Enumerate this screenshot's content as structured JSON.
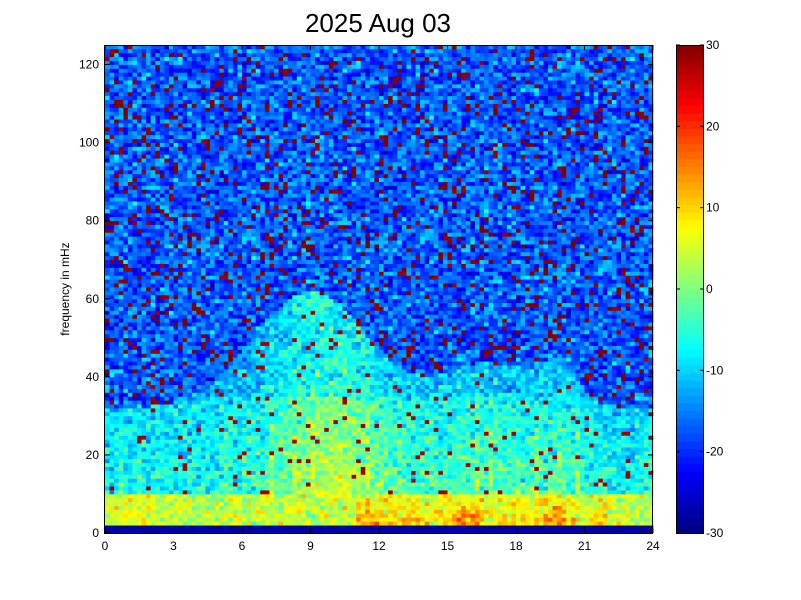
{
  "chart_data": {
    "type": "heatmap",
    "title": "2025 Aug 03",
    "xlabel": "",
    "ylabel": "frequency in mHz",
    "x_ticks": [
      "0",
      "3",
      "6",
      "9",
      "12",
      "15",
      "18",
      "21",
      "24"
    ],
    "y_ticks": [
      "0",
      "20",
      "40",
      "60",
      "80",
      "100",
      "120"
    ],
    "xlim": [
      0,
      24
    ],
    "ylim": [
      0,
      125
    ],
    "colorbar": {
      "colormap": "jet",
      "range": [
        -30,
        30
      ],
      "ticks": [
        "30",
        "20",
        "10",
        "0",
        "-10",
        "-20",
        "-30"
      ]
    },
    "grid": false,
    "cells": {
      "x_count": 120,
      "y_count": 125,
      "description_values": "power levels; broadband noise around -15 above 60 mHz, elevated 0 to 10 between 6 and 15 hours below 60 mHz, peaks near 25 below 10 mHz between 11 and 21 hours"
    }
  }
}
